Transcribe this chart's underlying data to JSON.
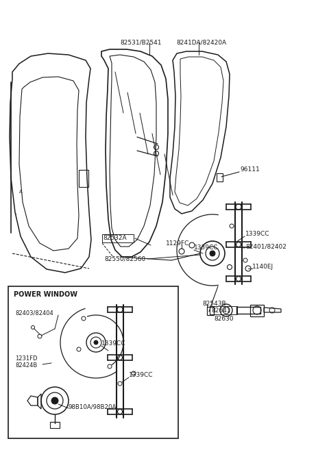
{
  "bg_color": "#ffffff",
  "line_color": "#1a1a1a",
  "text_color": "#1a1a1a",
  "labels": {
    "top_left": "82531/B2541",
    "top_right": "8241DA/82420A",
    "part_96111": "96111",
    "part_82532A": "82532A",
    "part_1129FC": "1129FC",
    "part_1339CC_a": "1339CC",
    "part_1339CC_b": "1339CC",
    "part_82550": "82550/82560",
    "part_82401": "82401/82402",
    "part_1140EJ": "1140EJ",
    "part_82543B": "82543B",
    "part_82641": "82641",
    "part_82630": "82630",
    "box_title": "POWER WINDOW",
    "part_82403": "82403/82404",
    "part_1339CC_box1": "1339CC",
    "part_1339CC_box2": "1339CC",
    "part_1231FD": "1231FD",
    "part_82424B": "82424B",
    "part_98810A": "98B10A/98B20A"
  },
  "figsize": [
    4.8,
    6.57
  ],
  "dpi": 100
}
